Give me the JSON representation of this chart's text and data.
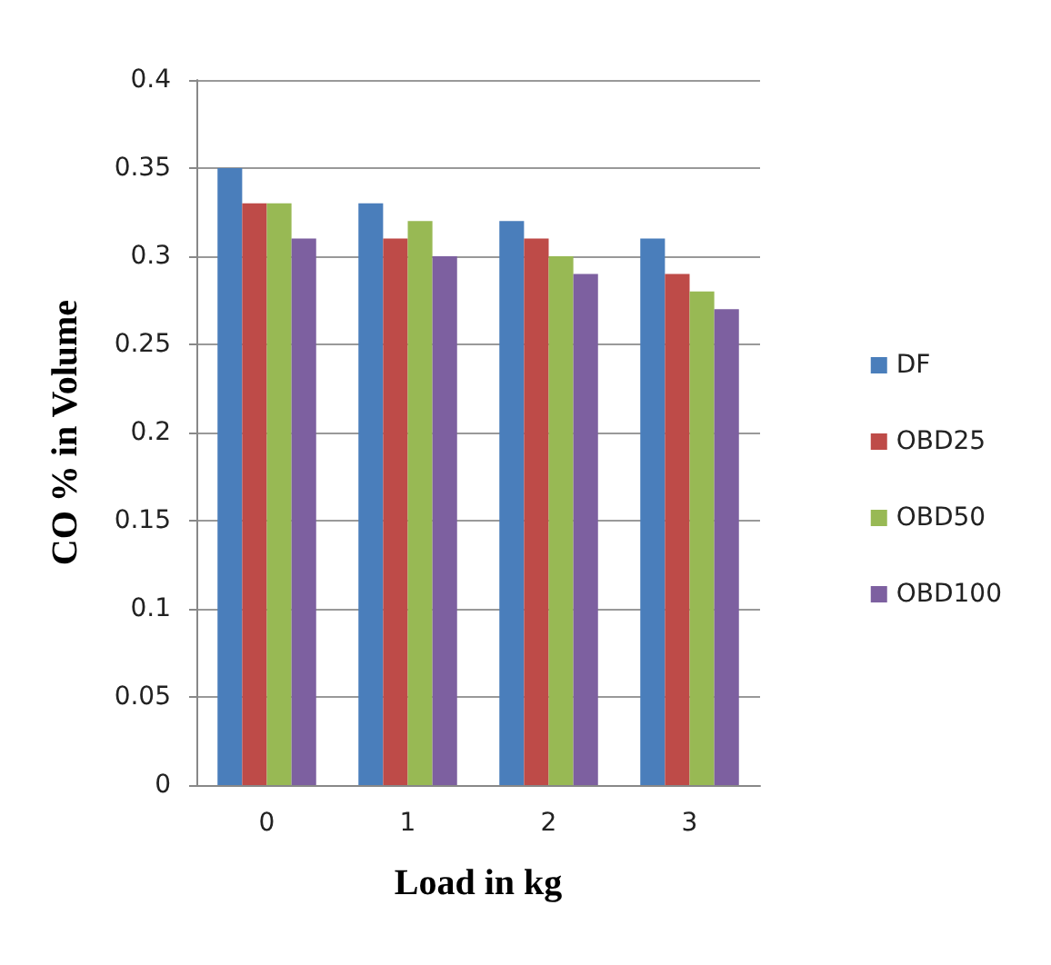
{
  "chart_data": {
    "type": "bar",
    "xlabel": "Load in kg",
    "ylabel": "CO % in Volume",
    "categories": [
      "0",
      "1",
      "2",
      "3"
    ],
    "series": [
      {
        "name": "DF",
        "color": "#4a7ebb",
        "values": [
          0.35,
          0.33,
          0.32,
          0.31
        ]
      },
      {
        "name": "OBD25",
        "color": "#be4b48",
        "values": [
          0.33,
          0.31,
          0.31,
          0.29
        ]
      },
      {
        "name": "OBD50",
        "color": "#98b954",
        "values": [
          0.33,
          0.32,
          0.3,
          0.28
        ]
      },
      {
        "name": "OBD100",
        "color": "#7d60a0",
        "values": [
          0.31,
          0.3,
          0.29,
          0.27
        ]
      }
    ],
    "ylim": [
      0,
      0.4
    ],
    "yticks": [
      0,
      0.05,
      0.1,
      0.15,
      0.2,
      0.25,
      0.3,
      0.35,
      0.4
    ],
    "grid": "y",
    "legend": "right"
  }
}
